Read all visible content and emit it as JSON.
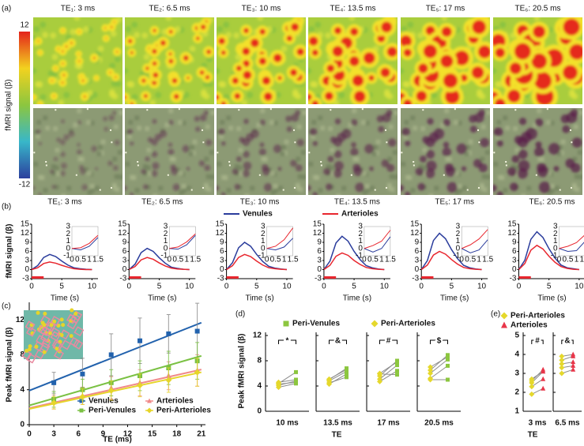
{
  "panel_a": {
    "label": "(a)",
    "titles": [
      "TE₁: 3 ms",
      "TE₂: 6.5 ms",
      "TE₃: 10 ms",
      "TE₄: 13.5 ms",
      "TE₅: 17 ms",
      "TE₆: 20.5 ms"
    ],
    "colorbar_label": "fMRI signal (β)",
    "colorbar_lim": [
      -12,
      12
    ],
    "colorbar_ticks": [
      12,
      -12
    ]
  },
  "chart_data": [
    {
      "type": "line-panels",
      "label": "(b)",
      "titles": [
        "TE₁: 3 ms",
        "TE₂: 6.5 ms",
        "TE₃: 10 ms",
        "TE₄: 13.5 ms",
        "TE₅: 17 ms",
        "TE₆: 20.5 ms"
      ],
      "ylabel": "fMRI signal (β)",
      "xlabel": "Time (s)",
      "x": [
        0,
        1,
        2,
        3,
        4,
        5,
        6,
        7,
        8,
        9,
        10
      ],
      "xlim": [
        0,
        11
      ],
      "xticks": [
        0,
        5,
        10
      ],
      "ylim": [
        -3,
        15
      ],
      "yticks": [
        -3,
        0,
        3,
        6,
        9,
        12,
        15
      ],
      "stimulus": [
        0,
        2
      ],
      "stimulus_color": "#e8262e",
      "inset_x": [
        0,
        0.5,
        1,
        1.5
      ],
      "inset_xlim": [
        0,
        1.5
      ],
      "inset_xticks": [
        0,
        0.5,
        1,
        1.5
      ],
      "inset_ylim": [
        -1,
        3
      ],
      "inset_yticks": [
        -1,
        0,
        1,
        2,
        3
      ],
      "series": [
        {
          "name": "Venules",
          "color": "#2a3c9c",
          "values": [
            [
              0,
              1.3,
              4,
              5,
              4.3,
              2.8,
              1.5,
              0.6,
              0.3,
              0.1,
              0
            ],
            [
              0,
              1.8,
              5.6,
              7,
              6,
              3.9,
              2.1,
              0.8,
              0.4,
              0.1,
              0
            ],
            [
              0,
              2.3,
              7.2,
              9,
              7.7,
              5,
              2.7,
              1.1,
              0.5,
              0.2,
              0
            ],
            [
              0,
              2.8,
              8.8,
              11,
              9.4,
              6,
              3.3,
              1.3,
              0.6,
              0.2,
              0
            ],
            [
              0,
              3,
              9.6,
              12,
              10.2,
              6.6,
              3.6,
              1.4,
              0.6,
              0.2,
              0
            ],
            [
              0,
              3.1,
              10,
              12.5,
              10.6,
              6.9,
              3.8,
              1.5,
              0.6,
              0.3,
              0
            ]
          ],
          "inset_values": [
            [
              0,
              -0.2,
              0.3,
              1.5
            ],
            [
              0,
              -0.1,
              0.5,
              1.8
            ],
            [
              0,
              -0.2,
              0.2,
              1.4
            ],
            [
              0,
              -0.5,
              0,
              1.6
            ],
            [
              0,
              -0.6,
              -0.2,
              1.2
            ],
            [
              0,
              -0.4,
              -0.3,
              1
            ]
          ]
        },
        {
          "name": "Arterioles",
          "color": "#e8262e",
          "values": [
            [
              0,
              0.6,
              2,
              2.5,
              2.1,
              1.4,
              0.8,
              0.3,
              0.1,
              0,
              0
            ],
            [
              0,
              1,
              3.2,
              4,
              3.4,
              2.2,
              1.2,
              0.5,
              0.2,
              0.1,
              0
            ],
            [
              0,
              1.3,
              4,
              5,
              4.3,
              2.8,
              1.5,
              0.6,
              0.3,
              0.1,
              0
            ],
            [
              0,
              1.4,
              4.4,
              5.5,
              4.7,
              3,
              1.7,
              0.7,
              0.3,
              0.1,
              0
            ],
            [
              0,
              1.5,
              4.8,
              6,
              5.1,
              3.3,
              1.8,
              0.7,
              0.3,
              0.1,
              0
            ],
            [
              0,
              2,
              6.4,
              8,
              6.8,
              4.4,
              2.4,
              1,
              0.4,
              0.1,
              0
            ]
          ],
          "inset_values": [
            [
              0,
              0.1,
              0.7,
              1.8
            ],
            [
              0,
              0.2,
              0.9,
              2
            ],
            [
              0,
              0.3,
              1.2,
              2.8
            ],
            [
              0,
              0.4,
              1,
              2.5
            ],
            [
              0,
              0.5,
              1.3,
              2.6
            ],
            [
              0,
              0.3,
              0.8,
              1.9
            ]
          ]
        }
      ]
    },
    {
      "type": "scatter-fit",
      "label": "(c)",
      "xlabel": "TE (ms)",
      "ylabel": "Peak fMRI signal (β)",
      "x": [
        3,
        6.5,
        10,
        13.5,
        17,
        20.5
      ],
      "xlim": [
        0,
        21.5
      ],
      "xticks": [
        0,
        3,
        6,
        9,
        12,
        15,
        18,
        21
      ],
      "ylim": [
        0,
        14
      ],
      "yticks": [
        0,
        4,
        8,
        12
      ],
      "series": [
        {
          "name": "Venules",
          "color": "#2262ad",
          "marker": "square",
          "values": [
            4.8,
            5.8,
            8,
            9.6,
            10.4,
            10.7
          ],
          "errors": [
            1.2,
            1.8,
            2.4,
            2.6,
            2.2,
            3.2
          ],
          "fit": [
            3.9,
            0.37
          ]
        },
        {
          "name": "Arterioles",
          "color": "#f08a8a",
          "marker": "triangle",
          "values": [
            2.6,
            3.3,
            4.2,
            4.8,
            5.6,
            6.2
          ],
          "errors": [
            0.8,
            1,
            1.3,
            1.5,
            1.6,
            1.8
          ],
          "fit": [
            1.9,
            0.21
          ]
        },
        {
          "name": "Peri-Venules",
          "color": "#7ac143",
          "marker": "square",
          "values": [
            2.9,
            4,
            4.8,
            5.6,
            6.5,
            7.3
          ],
          "errors": [
            0.9,
            1.2,
            1.5,
            1.7,
            1.9,
            2.1
          ],
          "fit": [
            2.2,
            0.27
          ]
        },
        {
          "name": "Peri-Arterioles",
          "color": "#e6d52a",
          "marker": "diamond",
          "values": [
            2.5,
            3.2,
            3.9,
            4.5,
            5.1,
            6
          ],
          "errors": [
            0.7,
            0.9,
            1.1,
            1.3,
            1.4,
            1.6
          ],
          "fit": [
            1.8,
            0.2
          ]
        }
      ]
    },
    {
      "type": "paired",
      "label": "(d)",
      "ylabel": "Peak fMRI signal (β)",
      "xlabel": "TE",
      "categories": [
        "10 ms",
        "13.5 ms",
        "17 ms",
        "20.5 ms"
      ],
      "significance": [
        "*",
        "&",
        "#",
        "$"
      ],
      "ylim": [
        0,
        12
      ],
      "yticks": [
        0,
        4,
        8,
        12
      ],
      "series": [
        {
          "name": "Peri-Venules",
          "color": "#8cc63f",
          "marker": "square",
          "values": [
            [
              6.2,
              4.8,
              4.4,
              5,
              4.6
            ],
            [
              6.8,
              6.3,
              5.9,
              5.4,
              6.6
            ],
            [
              8,
              7.3,
              6.4,
              5.8,
              7.8
            ],
            [
              8.9,
              8.2,
              7.2,
              5,
              8.6
            ]
          ]
        },
        {
          "name": "Peri-Arterioles",
          "color": "#e5d82c",
          "marker": "diamond",
          "values": [
            [
              4.4,
              4.1,
              3.8,
              4.6,
              4.3
            ],
            [
              5,
              4.8,
              4.3,
              4.5,
              5.1
            ],
            [
              5.6,
              5.1,
              4.7,
              5.9,
              6
            ],
            [
              6.5,
              6,
              5.2,
              5,
              7
            ]
          ]
        }
      ]
    },
    {
      "type": "paired",
      "label": "(e)",
      "xlabel": "TE",
      "categories": [
        "3 ms",
        "6.5 ms"
      ],
      "significance": [
        "#",
        "&"
      ],
      "ylim": [
        1,
        5
      ],
      "yticks": [
        1,
        2,
        3,
        4,
        5
      ],
      "series": [
        {
          "name": "Peri-Arterioles",
          "color": "#e5d82c",
          "marker": "diamond",
          "values": [
            [
              2.6,
              2.5,
              2.3,
              1.9,
              2.7
            ],
            [
              3.9,
              3.5,
              3.3,
              3,
              3.7
            ]
          ]
        },
        {
          "name": "Arterioles",
          "color": "#e8364a",
          "marker": "triangle",
          "values": [
            [
              3.2,
              3.1,
              2.7,
              2.2,
              3.1
            ],
            [
              4,
              3.6,
              3.4,
              3.2,
              3.9
            ]
          ]
        }
      ]
    }
  ]
}
